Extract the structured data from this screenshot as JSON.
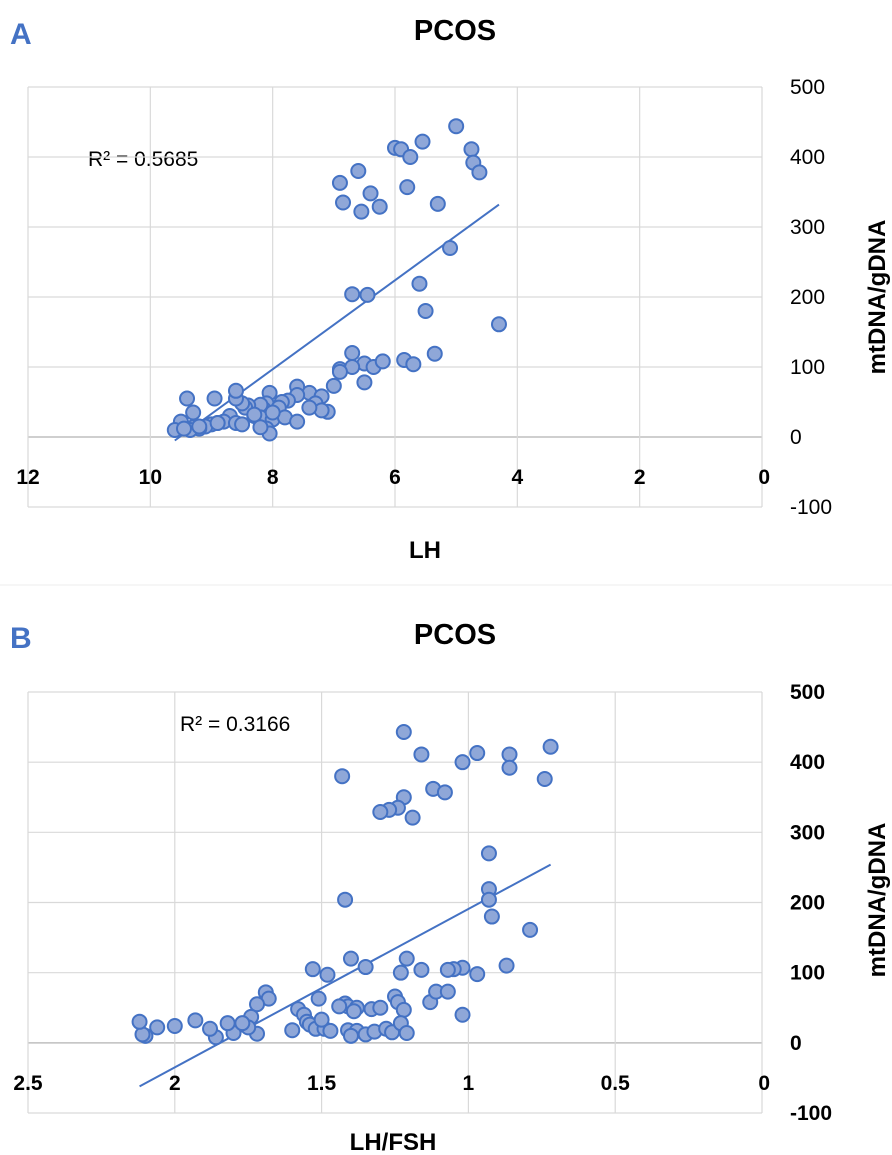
{
  "chart_data": [
    {
      "panel_label": "A",
      "type": "scatter",
      "title": "PCOS",
      "xlabel": "LH",
      "ylabel": "mtDNA/gDNA",
      "xlim": [
        12,
        0
      ],
      "ylim": [
        -100,
        500
      ],
      "x_reversed": true,
      "y_axis_position": "right",
      "x_ticks": [
        "12",
        "10",
        "8",
        "6",
        "4",
        "2",
        "0"
      ],
      "y_ticks": [
        "500",
        "400",
        "300",
        "200",
        "100",
        "0",
        "-100"
      ],
      "annotation": "R² = 0.5685",
      "trendline": {
        "x": [
          9.6,
          4.3
        ],
        "y": [
          -5,
          332
        ]
      },
      "points": {
        "x": [
          5.0,
          4.75,
          4.72,
          4.62,
          6.0,
          5.9,
          5.55,
          5.75,
          5.8,
          6.9,
          6.85,
          6.6,
          6.4,
          6.55,
          6.25,
          5.3,
          5.1,
          5.6,
          5.5,
          6.7,
          6.45,
          4.3,
          5.35,
          5.85,
          5.7,
          6.7,
          6.9,
          6.5,
          6.35,
          6.2,
          6.7,
          6.9,
          6.5,
          7.0,
          7.1,
          7.3,
          7.4,
          7.2,
          7.3,
          7.6,
          7.6,
          7.75,
          7.85,
          8.05,
          8.1,
          8.15,
          8.2,
          8.3,
          8.4,
          8.45,
          8.5,
          8.6,
          8.6,
          8.7,
          8.8,
          8.9,
          9.0,
          9.1,
          9.2,
          9.3,
          9.35,
          9.5,
          9.6,
          9.4,
          8.95,
          8.2,
          8.0,
          8.1,
          7.9,
          8.3,
          8.6,
          8.5,
          8.9,
          9.2,
          9.3,
          9.45,
          7.8,
          7.6,
          7.2,
          7.4,
          8.0,
          8.05,
          8.2
        ],
        "y": [
          444,
          411,
          392,
          378,
          413,
          411,
          422,
          400,
          357,
          363,
          335,
          380,
          348,
          322,
          329,
          333,
          270,
          219,
          180,
          204,
          203,
          161,
          119,
          110,
          104,
          120,
          97,
          105,
          100,
          108,
          100,
          93,
          78,
          73,
          36,
          55,
          63,
          58,
          48,
          72,
          60,
          52,
          50,
          63,
          48,
          40,
          46,
          30,
          45,
          42,
          48,
          55,
          66,
          30,
          22,
          20,
          18,
          15,
          12,
          14,
          10,
          22,
          10,
          55,
          55,
          28,
          25,
          12,
          42,
          32,
          20,
          18,
          20,
          15,
          35,
          12,
          28,
          22,
          38,
          42,
          35,
          5,
          14
        ]
      }
    },
    {
      "panel_label": "B",
      "type": "scatter",
      "title": "PCOS",
      "xlabel": "LH/FSH",
      "ylabel": "mtDNA/gDNA",
      "xlim": [
        2.5,
        0
      ],
      "ylim": [
        -100,
        500
      ],
      "x_reversed": true,
      "y_axis_position": "right",
      "x_ticks": [
        "2.5",
        "2",
        "1.5",
        "1",
        "0.5",
        "0"
      ],
      "y_ticks": [
        "500",
        "400",
        "300",
        "200",
        "100",
        "0",
        "-100"
      ],
      "annotation": "R² = 0.3166",
      "trendline": {
        "x": [
          2.12,
          0.72
        ],
        "y": [
          -62,
          254
        ]
      },
      "points": {
        "x": [
          1.22,
          1.43,
          1.16,
          1.02,
          0.97,
          0.86,
          0.86,
          0.72,
          0.74,
          1.12,
          1.08,
          1.22,
          1.24,
          1.27,
          1.3,
          1.19,
          0.93,
          0.93,
          0.93,
          0.92,
          0.79,
          1.42,
          1.4,
          1.35,
          1.21,
          1.23,
          1.02,
          1.05,
          1.07,
          0.97,
          0.87,
          1.48,
          1.53,
          1.69,
          1.68,
          1.72,
          1.74,
          1.51,
          1.42,
          1.41,
          1.38,
          1.39,
          1.33,
          1.3,
          1.25,
          1.24,
          1.22,
          1.16,
          1.13,
          1.11,
          1.07,
          1.02,
          1.58,
          1.56,
          1.55,
          1.54,
          1.52,
          1.49,
          1.47,
          1.41,
          1.38,
          1.35,
          1.32,
          1.28,
          1.26,
          1.23,
          1.21,
          1.6,
          1.72,
          1.8,
          1.82,
          1.86,
          1.88,
          2.0,
          2.06,
          2.1,
          2.11,
          2.12,
          1.93,
          1.75,
          1.77,
          1.44,
          1.4,
          1.5
        ],
        "y": [
          443,
          380,
          411,
          400,
          413,
          411,
          392,
          422,
          376,
          362,
          357,
          350,
          335,
          332,
          329,
          321,
          270,
          219,
          204,
          180,
          161,
          204,
          120,
          108,
          120,
          100,
          107,
          105,
          104,
          98,
          110,
          97,
          105,
          72,
          63,
          55,
          37,
          63,
          56,
          52,
          50,
          45,
          48,
          50,
          66,
          58,
          47,
          104,
          58,
          73,
          73,
          40,
          48,
          40,
          30,
          26,
          20,
          20,
          17,
          18,
          17,
          12,
          16,
          20,
          15,
          28,
          14,
          18,
          13,
          14,
          28,
          8,
          20,
          24,
          22,
          10,
          12,
          30,
          32,
          22,
          28,
          52,
          10,
          33
        ]
      }
    }
  ]
}
